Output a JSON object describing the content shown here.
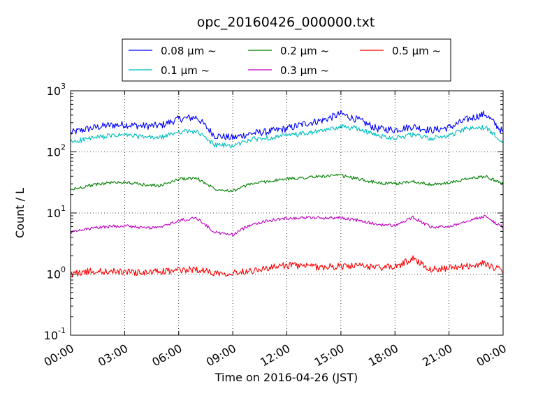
{
  "chart_data": {
    "type": "line",
    "title": "opc_20160426_000000.txt",
    "xlabel": "Time on 2016-04-26 (JST)",
    "ylabel": "Count / L",
    "yscale": "log",
    "ylim": [
      0.1,
      1000
    ],
    "xlim": [
      "2016-04-26 00:00",
      "2016-04-27 00:00"
    ],
    "x_tick_labels": [
      "00:00",
      "03:00",
      "06:00",
      "09:00",
      "12:00",
      "15:00",
      "18:00",
      "21:00",
      "00:00"
    ],
    "y_tick_labels": [
      {
        "base": "10",
        "exp": "-1"
      },
      {
        "base": "10",
        "exp": "0"
      },
      {
        "base": "10",
        "exp": "1"
      },
      {
        "base": "10",
        "exp": "2"
      },
      {
        "base": "10",
        "exp": "3"
      }
    ],
    "grid": true,
    "legend_position": "top-center",
    "x_hours": [
      0,
      1,
      2,
      3,
      4,
      5,
      6,
      7,
      8,
      9,
      10,
      11,
      12,
      13,
      14,
      15,
      16,
      17,
      18,
      19,
      20,
      21,
      22,
      23,
      24
    ],
    "series": [
      {
        "name": "0.08 μm ~",
        "color": "#0000ff",
        "values": [
          205,
          240,
          270,
          280,
          265,
          270,
          345,
          370,
          185,
          170,
          200,
          215,
          240,
          290,
          330,
          420,
          330,
          240,
          230,
          260,
          225,
          250,
          340,
          420,
          210
        ]
      },
      {
        "name": "0.1 μm ~",
        "color": "#00bfbf",
        "values": [
          145,
          165,
          180,
          190,
          175,
          170,
          215,
          215,
          130,
          125,
          160,
          170,
          185,
          200,
          220,
          260,
          240,
          185,
          170,
          190,
          165,
          185,
          240,
          250,
          150
        ]
      },
      {
        "name": "0.2 μm ~",
        "color": "#008000",
        "values": [
          24,
          28,
          31,
          32,
          29,
          28,
          36,
          37,
          25,
          23,
          30,
          33,
          36,
          38,
          40,
          41,
          36,
          31,
          30,
          33,
          29,
          31,
          36,
          40,
          30
        ]
      },
      {
        "name": "0.3 μm ~",
        "color": "#bf00bf",
        "values": [
          4.8,
          5.5,
          6.0,
          6.2,
          5.7,
          5.8,
          7.5,
          8.3,
          4.8,
          4.4,
          6.5,
          7.5,
          8.2,
          8.4,
          8.3,
          8.4,
          7.5,
          6.5,
          6.2,
          8.5,
          5.8,
          6.0,
          7.5,
          8.8,
          5.8
        ]
      },
      {
        "name": "0.5 μm ~",
        "color": "#ff0000",
        "values": [
          1.0,
          1.1,
          1.1,
          1.1,
          1.05,
          1.1,
          1.15,
          1.2,
          1.05,
          1.05,
          1.15,
          1.25,
          1.4,
          1.35,
          1.3,
          1.35,
          1.35,
          1.3,
          1.3,
          1.8,
          1.2,
          1.25,
          1.35,
          1.5,
          1.1
        ]
      }
    ]
  }
}
